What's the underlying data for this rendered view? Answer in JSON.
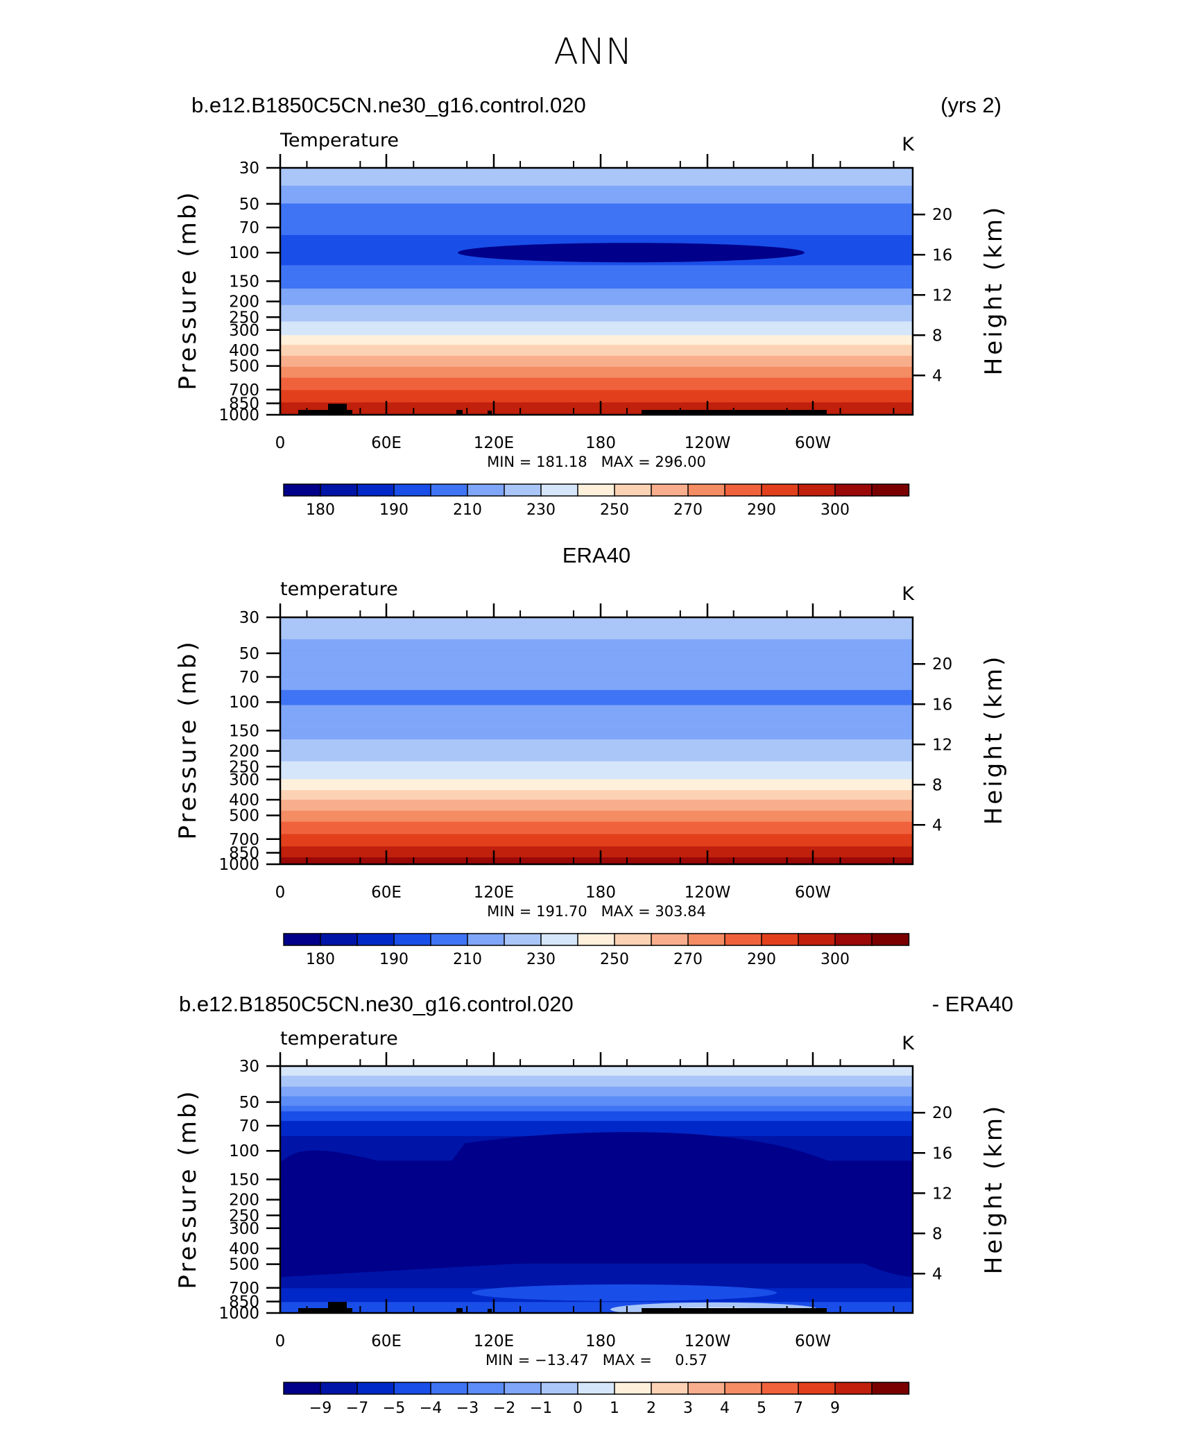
{
  "page": {
    "title": "ANN"
  },
  "chart_data": [
    {
      "type": "heatmap",
      "header_left": "b.e12.B1850C5CN.ne30_g16.control.020",
      "header_right": "(yrs 2)",
      "title": "Temperature",
      "units": "K",
      "xlabel": "",
      "ylabel": "Pressure (mb)",
      "ylabel_right": "Height (km)",
      "xticks": [
        "0",
        "60E",
        "120E",
        "180",
        "120W",
        "60W"
      ],
      "yticks": [
        "30",
        "50",
        "70",
        "100",
        "150",
        "200",
        "250",
        "300",
        "400",
        "500",
        "700",
        "850",
        "1000"
      ],
      "yticks_right": [
        "20",
        "16",
        "12",
        "8",
        "4"
      ],
      "stats": "MIN = 181.18   MAX = 296.00",
      "colorbar_labels": [
        "180",
        "190",
        "210",
        "230",
        "250",
        "270",
        "290",
        "300"
      ],
      "has_topography": true,
      "profile": [
        [
          30,
          221
        ],
        [
          40,
          215
        ],
        [
          50,
          207
        ],
        [
          70,
          201
        ],
        [
          100,
          196
        ],
        [
          150,
          204
        ],
        [
          200,
          214
        ],
        [
          250,
          222
        ],
        [
          300,
          228
        ],
        [
          400,
          244
        ],
        [
          500,
          256
        ],
        [
          600,
          265
        ],
        [
          700,
          272
        ],
        [
          850,
          281
        ],
        [
          1000,
          289
        ]
      ]
    },
    {
      "type": "heatmap",
      "header_left": "",
      "header_center": "ERA40",
      "header_right": "",
      "title": "temperature",
      "units": "K",
      "xlabel": "",
      "ylabel": "Pressure (mb)",
      "ylabel_right": "Height (km)",
      "xticks": [
        "0",
        "60E",
        "120E",
        "180",
        "120W",
        "60W"
      ],
      "yticks": [
        "30",
        "50",
        "70",
        "100",
        "150",
        "200",
        "250",
        "300",
        "400",
        "500",
        "700",
        "850",
        "1000"
      ],
      "yticks_right": [
        "20",
        "16",
        "12",
        "8",
        "4"
      ],
      "stats": "MIN = 191.70   MAX = 303.84",
      "colorbar_labels": [
        "180",
        "190",
        "210",
        "230",
        "250",
        "270",
        "290",
        "300"
      ],
      "has_topography": false,
      "profile": [
        [
          30,
          222
        ],
        [
          40,
          216
        ],
        [
          50,
          212
        ],
        [
          70,
          208
        ],
        [
          100,
          207
        ],
        [
          150,
          213
        ],
        [
          200,
          219
        ],
        [
          250,
          226
        ],
        [
          300,
          232
        ],
        [
          400,
          248
        ],
        [
          500,
          260
        ],
        [
          600,
          269
        ],
        [
          700,
          276
        ],
        [
          850,
          285
        ],
        [
          1000,
          295
        ]
      ]
    },
    {
      "type": "heatmap",
      "header_left": "b.e12.B1850C5CN.ne30_g16.control.020",
      "header_right": "- ERA40",
      "title": "temperature",
      "units": "K",
      "xlabel": "",
      "ylabel": "Pressure (mb)",
      "ylabel_right": "Height (km)",
      "xticks": [
        "0",
        "60E",
        "120E",
        "180",
        "120W",
        "60W"
      ],
      "yticks": [
        "30",
        "50",
        "70",
        "100",
        "150",
        "200",
        "250",
        "300",
        "400",
        "500",
        "700",
        "850",
        "1000"
      ],
      "yticks_right": [
        "20",
        "16",
        "12",
        "8",
        "4"
      ],
      "stats": "MIN = −13.47   MAX =     0.57",
      "colorbar_labels": [
        "−9",
        "−7",
        "−5",
        "−4",
        "−3",
        "−2",
        "−1",
        "0",
        "1",
        "2",
        "3",
        "4",
        "5",
        "7",
        "9"
      ],
      "has_topography": true,
      "profile": [
        [
          30,
          0.5
        ],
        [
          40,
          -1.5
        ],
        [
          50,
          -3
        ],
        [
          60,
          -5
        ],
        [
          70,
          -7
        ],
        [
          100,
          -9.5
        ],
        [
          150,
          -11
        ],
        [
          300,
          -11.5
        ],
        [
          500,
          -10
        ],
        [
          700,
          -8
        ],
        [
          850,
          -6
        ],
        [
          1000,
          -5
        ]
      ]
    }
  ],
  "colors": {
    "temperature_scale": [
      "#00008a",
      "#0014a8",
      "#0028c8",
      "#1a4ee8",
      "#3f74f4",
      "#7fa6f8",
      "#aac6f8",
      "#d6e6fa",
      "#fff0dc",
      "#fcd2b4",
      "#f8ae8c",
      "#f48c64",
      "#f0623c",
      "#e2401c",
      "#c0200c",
      "#9a0808",
      "#7a0000"
    ],
    "difference_scale": [
      "#00008a",
      "#0014a8",
      "#0028c8",
      "#1a4ee8",
      "#3f74f4",
      "#5c8cf6",
      "#7fa6f8",
      "#aac6f8",
      "#d6e6fa",
      "#fff0dc",
      "#fcd2b4",
      "#f8ae8c",
      "#f48c64",
      "#f0623c",
      "#e2401c",
      "#c0200c",
      "#7a0000"
    ],
    "topography": "#000000"
  }
}
